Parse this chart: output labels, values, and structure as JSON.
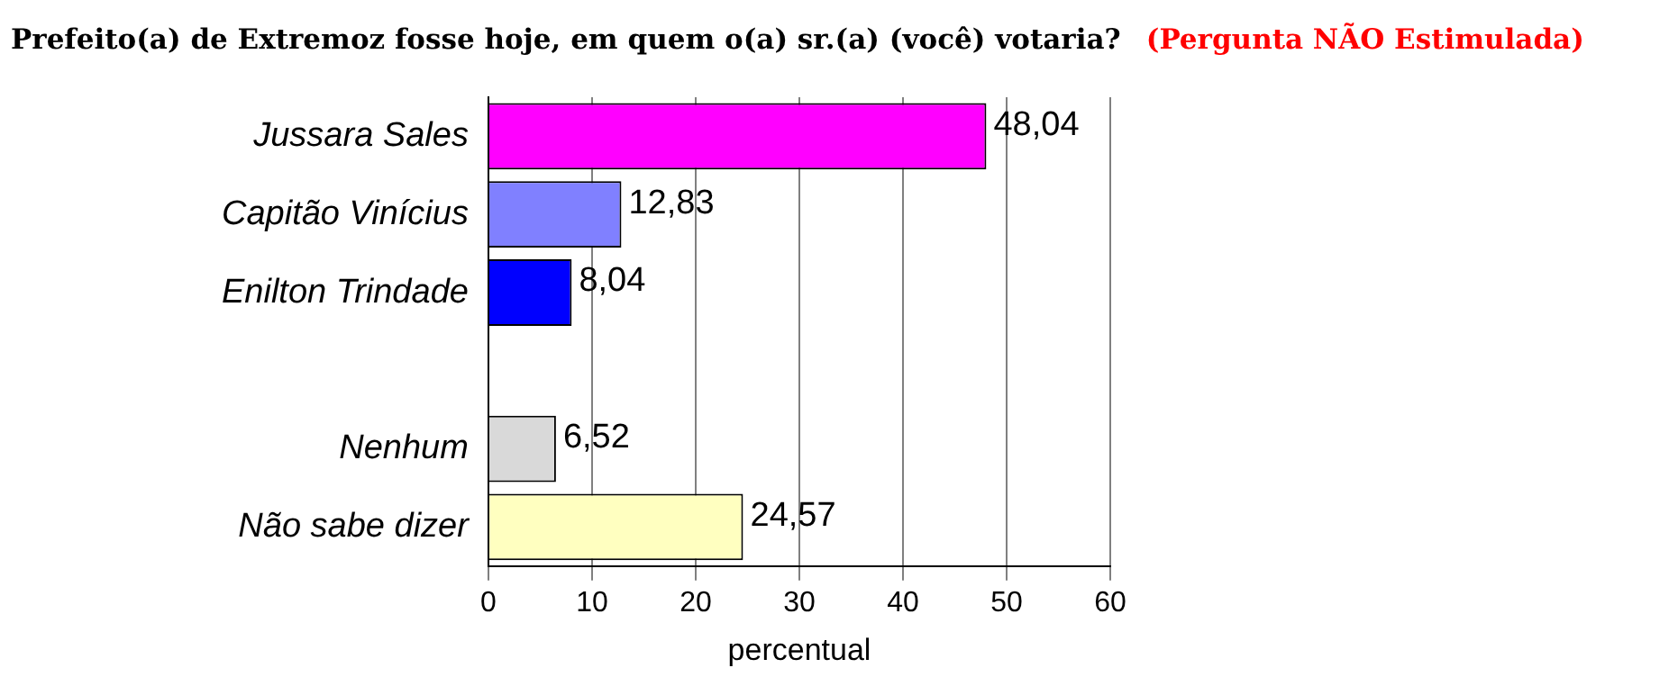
{
  "chart_data": {
    "type": "bar",
    "orientation": "horizontal",
    "title": "Prefeito(a) de Extremoz fosse hoje, em quem o(a) sr.(a) (você) votaria?",
    "subtitle": "(Pergunta NÃO Estimulada)",
    "xlabel": "percentual",
    "categories": [
      "Jussara Sales",
      "Capitão Vinícius",
      "Enilton Trindade",
      null,
      "Nenhum",
      "Não sabe dizer"
    ],
    "values": [
      48.04,
      12.83,
      8.04,
      null,
      6.52,
      24.57
    ],
    "colors": [
      "#ff00ff",
      "#8080ff",
      "#0000ff",
      "#ffffff",
      "#d9d9d9",
      "#ffffc0"
    ],
    "value_labels": [
      "48,04",
      "12,83",
      "8,04",
      null,
      "6,52",
      "24,57"
    ],
    "xlim": [
      0,
      60
    ],
    "xticks": [
      0,
      10,
      20,
      30,
      40,
      50,
      60
    ],
    "grid": "x",
    "legend": false
  }
}
